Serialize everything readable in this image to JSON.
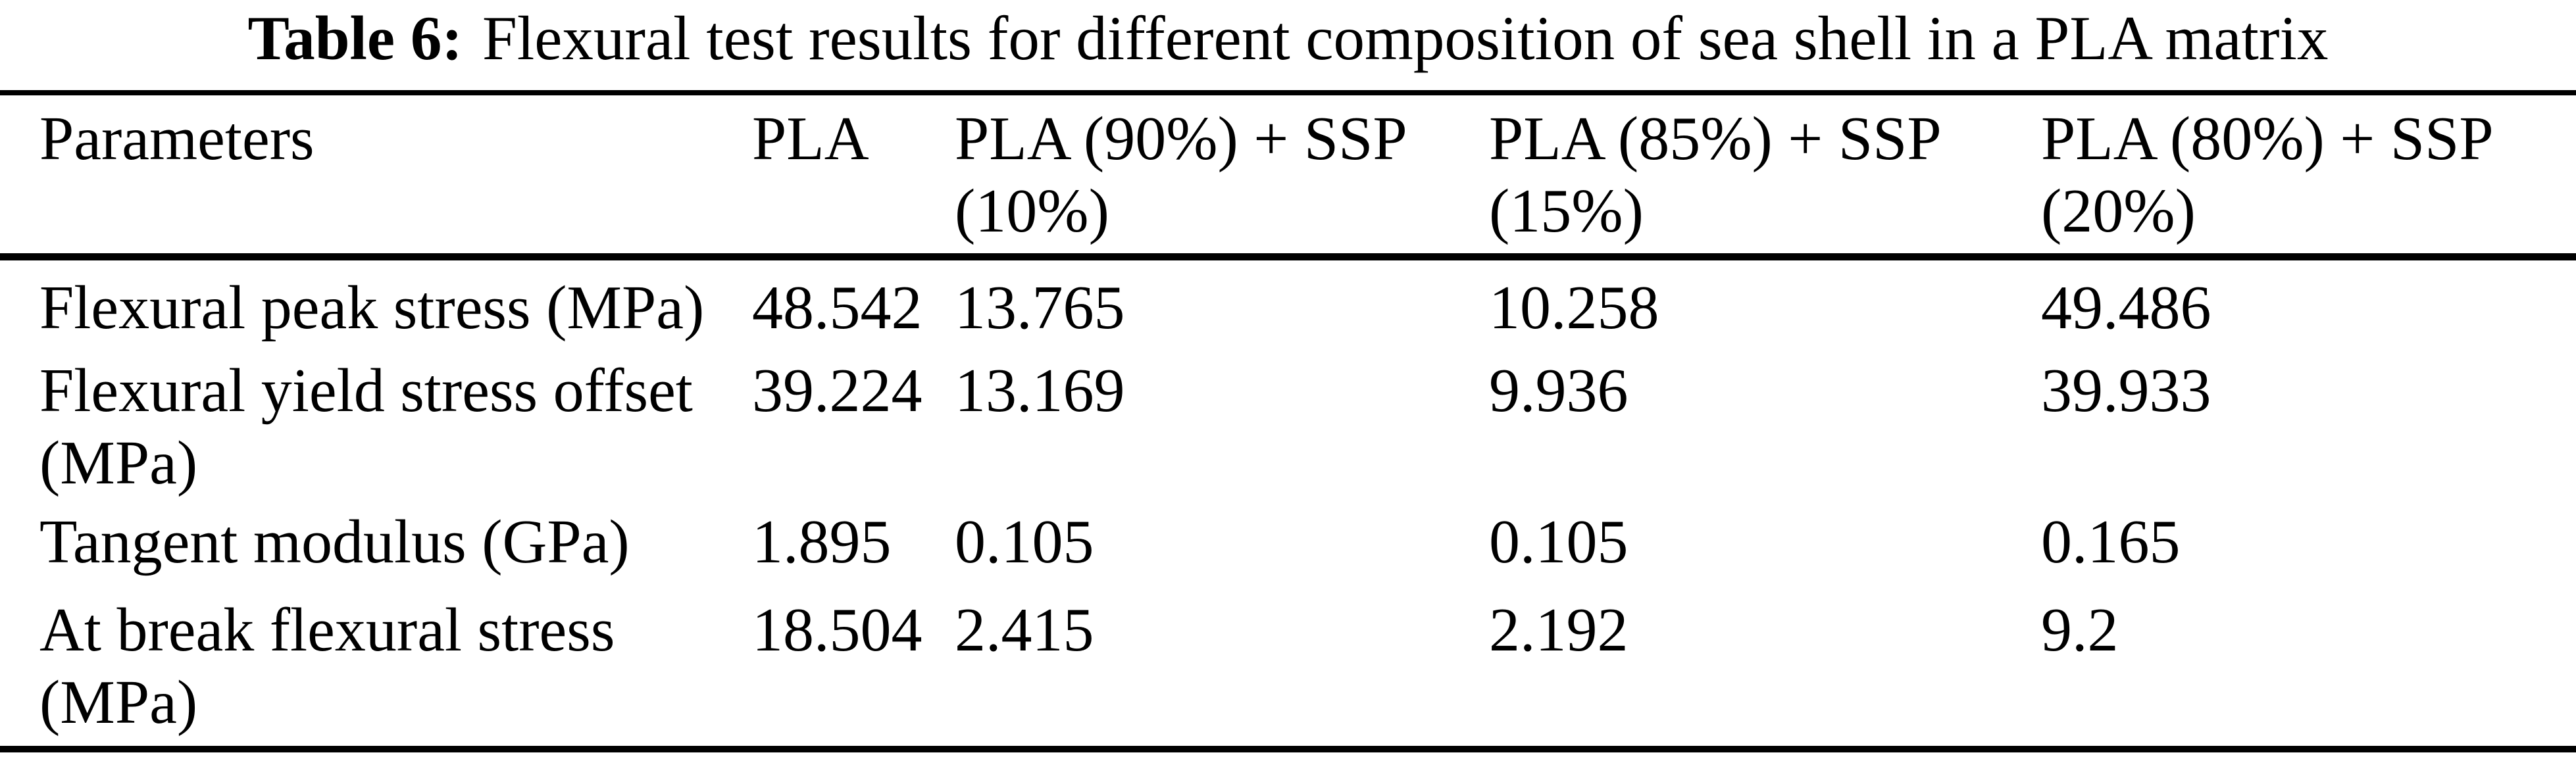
{
  "caption": {
    "label": "Table 6:",
    "text": "Flexural test results for different composition of sea shell in a PLA matrix"
  },
  "table": {
    "columns": [
      "Parameters",
      "PLA",
      "PLA (90%) + SSP\n(10%)",
      "PLA (85%) + SSP\n(15%)",
      "PLA (80%) + SSP\n(20%)"
    ],
    "rows": [
      [
        "Flexural peak stress (MPa)",
        "48.542",
        "13.765",
        "10.258",
        "49.486"
      ],
      [
        "Flexural yield stress offset\n(MPa)",
        "39.224",
        "13.169",
        "9.936",
        "39.933"
      ],
      [
        "Tangent modulus (GPa)",
        "1.895",
        "0.105",
        "0.105",
        "0.165"
      ],
      [
        "At break flexural stress\n(MPa)",
        "18.504",
        "2.415",
        "2.192",
        "9.2"
      ]
    ]
  },
  "chart_data": {
    "type": "table",
    "title": "Table 6: Flexural test results for different composition of sea shell in a PLA matrix",
    "columns": [
      "Parameters",
      "PLA",
      "PLA (90%) + SSP (10%)",
      "PLA (85%) + SSP (15%)",
      "PLA (80%) + SSP (20%)"
    ],
    "series": [
      {
        "name": "Flexural peak stress (MPa)",
        "values": [
          48.542,
          13.765,
          10.258,
          49.486
        ]
      },
      {
        "name": "Flexural yield stress offset (MPa)",
        "values": [
          39.224,
          13.169,
          9.936,
          39.933
        ]
      },
      {
        "name": "Tangent modulus (GPa)",
        "values": [
          1.895,
          0.105,
          0.105,
          0.165
        ]
      },
      {
        "name": "At break flexural stress (MPa)",
        "values": [
          18.504,
          2.415,
          2.192,
          9.2
        ]
      }
    ]
  },
  "colors": {
    "text": "#000000",
    "background": "#ffffff",
    "rule": "#000000"
  }
}
